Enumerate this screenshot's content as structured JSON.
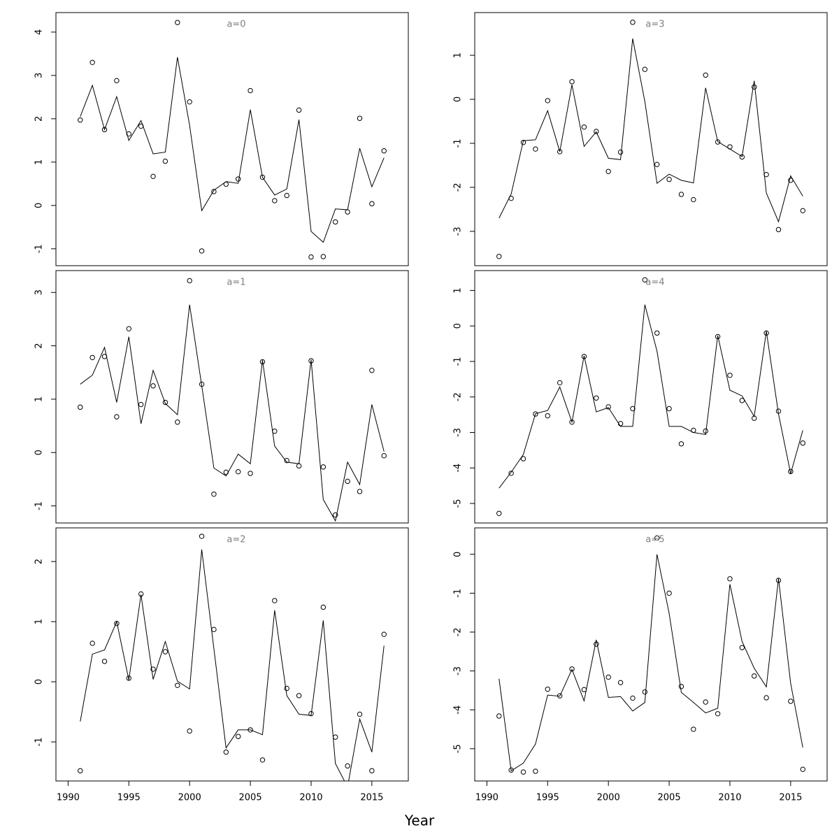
{
  "xlabel": "Year",
  "chart_data": [
    {
      "type": "line",
      "title": "a=0",
      "x": [
        1991,
        1992,
        1993,
        1994,
        1995,
        1996,
        1997,
        1998,
        1999,
        2000,
        2001,
        2002,
        2003,
        2004,
        2005,
        2006,
        2007,
        2008,
        2009,
        2010,
        2011,
        2012,
        2013,
        2014,
        2015,
        2016
      ],
      "series": [
        {
          "style": "line",
          "color": "#000000",
          "values": [
            2.05,
            2.77,
            1.75,
            2.51,
            1.5,
            1.96,
            1.19,
            1.23,
            3.42,
            1.85,
            -0.12,
            0.35,
            0.55,
            0.51,
            2.21,
            0.65,
            0.24,
            0.38,
            1.98,
            -0.6,
            -0.85,
            -0.08,
            -0.1,
            1.32,
            0.43,
            1.1
          ]
        },
        {
          "style": "points",
          "color": "#000000",
          "values": [
            1.97,
            3.3,
            1.75,
            2.88,
            1.65,
            1.83,
            0.67,
            1.02,
            4.22,
            2.39,
            -1.05,
            0.32,
            0.49,
            0.61,
            2.65,
            0.65,
            0.11,
            0.23,
            2.2,
            -1.19,
            -1.18,
            -0.38,
            -0.15,
            2.01,
            0.04,
            1.26
          ]
        }
      ],
      "xlim": [
        1989,
        2018
      ],
      "ylim": [
        -1.39,
        4.45
      ],
      "yticks": [
        -1,
        0,
        1,
        2,
        3,
        4
      ]
    },
    {
      "type": "line",
      "title": "a=1",
      "x": [
        1991,
        1992,
        1993,
        1994,
        1995,
        1996,
        1997,
        1998,
        1999,
        2000,
        2001,
        2002,
        2003,
        2004,
        2005,
        2006,
        2007,
        2008,
        2009,
        2010,
        2011,
        2012,
        2013,
        2014,
        2015,
        2016
      ],
      "series": [
        {
          "style": "line",
          "color": "#000000",
          "values": [
            1.28,
            1.45,
            1.97,
            0.94,
            2.17,
            0.54,
            1.54,
            0.92,
            0.71,
            2.77,
            1.25,
            -0.29,
            -0.44,
            -0.03,
            -0.21,
            1.73,
            0.12,
            -0.18,
            -0.21,
            1.74,
            -0.88,
            -1.28,
            -0.18,
            -0.6,
            0.9,
            0.02
          ]
        },
        {
          "style": "points",
          "color": "#000000",
          "values": [
            0.85,
            1.78,
            1.8,
            0.67,
            2.32,
            0.9,
            1.25,
            0.94,
            0.57,
            3.22,
            1.28,
            -0.78,
            -0.37,
            -0.36,
            -0.39,
            1.7,
            0.4,
            -0.15,
            -0.25,
            1.72,
            -0.27,
            -1.17,
            -0.54,
            -0.73,
            1.54,
            -0.06
          ]
        }
      ],
      "xlim": [
        1989,
        2018
      ],
      "ylim": [
        -1.32,
        3.41
      ],
      "yticks": [
        -1,
        0,
        1,
        2,
        3
      ]
    },
    {
      "type": "line",
      "title": "a=2",
      "x": [
        1991,
        1992,
        1993,
        1994,
        1995,
        1996,
        1997,
        1998,
        1999,
        2000,
        2001,
        2002,
        2003,
        2004,
        2005,
        2006,
        2007,
        2008,
        2009,
        2010,
        2011,
        2012,
        2013,
        2014,
        2015,
        2016
      ],
      "series": [
        {
          "style": "line",
          "color": "#000000",
          "values": [
            -0.66,
            0.46,
            0.53,
            1.0,
            0.03,
            1.45,
            0.04,
            0.67,
            0.01,
            -0.12,
            2.2,
            0.55,
            -1.1,
            -0.8,
            -0.8,
            -0.88,
            1.19,
            -0.23,
            -0.54,
            -0.56,
            1.02,
            -1.36,
            -1.75,
            -0.62,
            -1.17,
            0.6
          ]
        },
        {
          "style": "points",
          "color": "#000000",
          "values": [
            -1.48,
            0.64,
            0.34,
            0.97,
            0.06,
            1.46,
            0.21,
            0.5,
            -0.06,
            -0.82,
            2.42,
            0.87,
            -1.17,
            -0.91,
            -0.8,
            -1.3,
            1.35,
            -0.11,
            -0.23,
            -0.53,
            1.24,
            -0.92,
            -1.4,
            -0.54,
            -1.48,
            0.79
          ]
        }
      ],
      "xlim": [
        1989,
        2018
      ],
      "xticks": [
        1990,
        1995,
        2000,
        2005,
        2010,
        2015
      ],
      "ylim": [
        -1.65,
        2.56
      ],
      "yticks": [
        -1,
        0,
        1,
        2
      ]
    },
    {
      "type": "line",
      "title": "a=3",
      "x": [
        1991,
        1992,
        1993,
        1994,
        1995,
        1996,
        1997,
        1998,
        1999,
        2000,
        2001,
        2002,
        2003,
        2004,
        2005,
        2006,
        2007,
        2008,
        2009,
        2010,
        2011,
        2012,
        2013,
        2014,
        2015,
        2016
      ],
      "series": [
        {
          "style": "line",
          "color": "#000000",
          "values": [
            -2.7,
            -2.15,
            -0.94,
            -0.92,
            -0.26,
            -1.19,
            0.33,
            -1.07,
            -0.74,
            -1.34,
            -1.37,
            1.38,
            -0.05,
            -1.91,
            -1.7,
            -1.84,
            -1.9,
            0.26,
            -0.96,
            -1.13,
            -1.3,
            0.42,
            -2.13,
            -2.78,
            -1.74,
            -2.2
          ]
        },
        {
          "style": "points",
          "color": "#000000",
          "values": [
            -3.57,
            -2.25,
            -0.98,
            -1.13,
            -0.03,
            -1.19,
            0.4,
            -0.63,
            -0.73,
            -1.64,
            -1.2,
            1.75,
            0.68,
            -1.48,
            -1.82,
            -2.16,
            -2.28,
            0.55,
            -0.97,
            -1.08,
            -1.31,
            0.28,
            -1.71,
            -2.96,
            -1.84,
            -2.53
          ]
        }
      ],
      "xlim": [
        1989,
        2018
      ],
      "ylim": [
        -3.78,
        1.97
      ],
      "yticks": [
        -3,
        -2,
        -1,
        0,
        1
      ]
    },
    {
      "type": "line",
      "title": "a=4",
      "x": [
        1991,
        1992,
        1993,
        1994,
        1995,
        1996,
        1997,
        1998,
        1999,
        2000,
        2001,
        2002,
        2003,
        2004,
        2005,
        2006,
        2007,
        2008,
        2009,
        2010,
        2011,
        2012,
        2013,
        2014,
        2015,
        2016
      ],
      "series": [
        {
          "style": "line",
          "color": "#000000",
          "values": [
            -4.57,
            -4.12,
            -3.62,
            -2.47,
            -2.38,
            -1.72,
            -2.71,
            -0.84,
            -2.42,
            -2.3,
            -2.83,
            -2.83,
            0.6,
            -0.71,
            -2.83,
            -2.83,
            -3.0,
            -3.06,
            -0.27,
            -1.81,
            -1.97,
            -2.55,
            -0.15,
            -2.48,
            -4.16,
            -2.94
          ]
        },
        {
          "style": "points",
          "color": "#000000",
          "values": [
            -5.28,
            -4.15,
            -3.74,
            -2.48,
            -2.53,
            -1.6,
            -2.71,
            -0.86,
            -2.03,
            -2.28,
            -2.75,
            -2.33,
            1.3,
            -0.2,
            -2.33,
            -3.32,
            -2.94,
            -2.96,
            -0.3,
            -1.39,
            -2.1,
            -2.6,
            -0.2,
            -2.4,
            -4.1,
            -3.3
          ]
        }
      ],
      "xlim": [
        1989,
        2018
      ],
      "ylim": [
        -5.55,
        1.56
      ],
      "yticks": [
        -5,
        -4,
        -3,
        -2,
        -1,
        0,
        1
      ]
    },
    {
      "type": "line",
      "title": "a=5",
      "x": [
        1991,
        1992,
        1993,
        1994,
        1995,
        1996,
        1997,
        1998,
        1999,
        2000,
        2001,
        2002,
        2003,
        2004,
        2005,
        2006,
        2007,
        2008,
        2009,
        2010,
        2011,
        2012,
        2013,
        2014,
        2015,
        2016
      ],
      "series": [
        {
          "style": "line",
          "color": "#000000",
          "values": [
            -3.2,
            -5.57,
            -5.37,
            -4.88,
            -3.62,
            -3.65,
            -2.96,
            -3.77,
            -2.2,
            -3.68,
            -3.66,
            -4.03,
            -3.81,
            0.0,
            -1.52,
            -3.55,
            -3.81,
            -4.08,
            -3.96,
            -0.77,
            -2.24,
            -2.93,
            -3.41,
            -0.62,
            -3.32,
            -4.97
          ]
        },
        {
          "style": "points",
          "color": "#000000",
          "values": [
            -4.16,
            -5.55,
            -5.6,
            -5.58,
            -3.47,
            -3.64,
            -2.95,
            -3.48,
            -2.31,
            -3.16,
            -3.3,
            -3.7,
            -3.54,
            0.42,
            -1.0,
            -3.4,
            -4.5,
            -3.8,
            -4.1,
            -0.63,
            -2.4,
            -3.13,
            -3.69,
            -0.67,
            -3.78,
            -5.53
          ]
        }
      ],
      "xlim": [
        1989,
        2018
      ],
      "xticks": [
        1990,
        1995,
        2000,
        2005,
        2010,
        2015
      ],
      "ylim": [
        -5.83,
        0.68
      ],
      "yticks": [
        -5,
        -4,
        -3,
        -2,
        -1,
        0
      ]
    }
  ]
}
